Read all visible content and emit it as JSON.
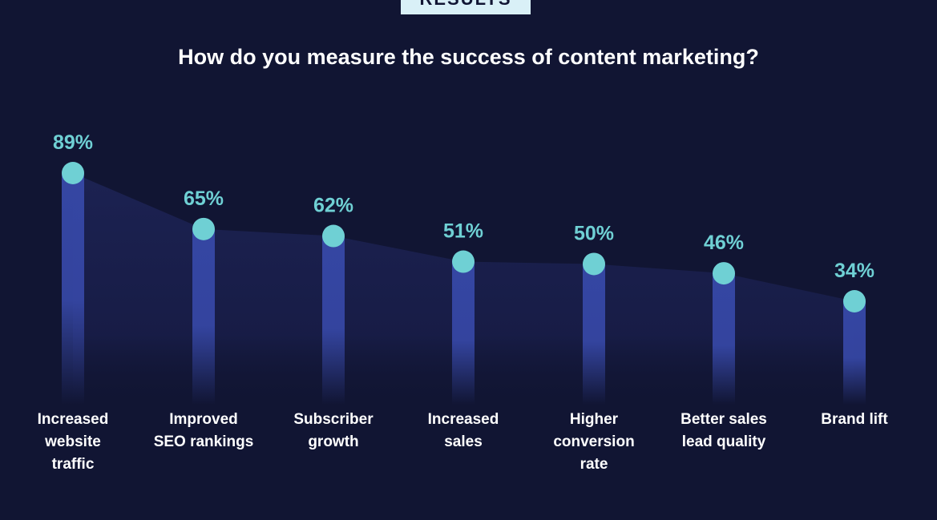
{
  "header": {
    "badge_text": "RESULTS",
    "title": "How do you measure the success of content marketing?"
  },
  "colors": {
    "background": "#111533",
    "area_fill": "#1a1f4a",
    "bar": "#3546a3",
    "marker": "#6fd0d4",
    "value_label": "#6fd0d4",
    "text": "#ffffff"
  },
  "chart_data": {
    "type": "line",
    "title": "How do you measure the success of content marketing?",
    "categories": [
      "Increased website traffic",
      "Improved SEO rankings",
      "Subscriber growth",
      "Increased sales",
      "Higher conversion rate",
      "Better sales lead quality",
      "Brand lift"
    ],
    "category_label_lines": [
      [
        "Increased",
        "website",
        "traffic"
      ],
      [
        "Improved",
        "SEO rankings"
      ],
      [
        "Subscriber",
        "growth"
      ],
      [
        "Increased",
        "sales"
      ],
      [
        "Higher",
        "conversion",
        "rate"
      ],
      [
        "Better sales",
        "lead quality"
      ],
      [
        "Brand lift"
      ]
    ],
    "values": [
      89,
      65,
      62,
      51,
      50,
      46,
      34
    ],
    "value_labels": [
      "89%",
      "65%",
      "62%",
      "51%",
      "50%",
      "46%",
      "34%"
    ],
    "unit": "%",
    "grid": false,
    "legend": "none"
  }
}
